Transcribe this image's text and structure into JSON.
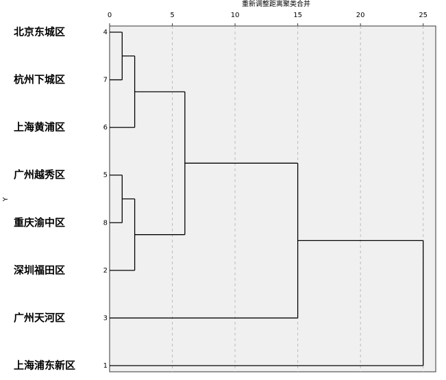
{
  "chart_data": {
    "type": "dendrogram",
    "xlabel": "重新调整距离聚类合并",
    "ylabel": "Y",
    "leaves": [
      {
        "label": "北京东城区",
        "case": 4
      },
      {
        "label": "杭州下城区",
        "case": 7
      },
      {
        "label": "上海黄浦区",
        "case": 6
      },
      {
        "label": "广州越秀区",
        "case": 5
      },
      {
        "label": "重庆渝中区",
        "case": 8
      },
      {
        "label": "深圳福田区",
        "case": 2
      },
      {
        "label": "广州天河区",
        "case": 3
      },
      {
        "label": "上海浦东新区",
        "case": 1
      }
    ],
    "merges": [
      {
        "nodes": [
          0,
          1
        ],
        "distance": 1
      },
      {
        "nodes": [
          8,
          2
        ],
        "distance": 2
      },
      {
        "nodes": [
          3,
          4
        ],
        "distance": 1
      },
      {
        "nodes": [
          10,
          5
        ],
        "distance": 2
      },
      {
        "nodes": [
          9,
          11
        ],
        "distance": 6
      },
      {
        "nodes": [
          12,
          6
        ],
        "distance": 15
      },
      {
        "nodes": [
          13,
          7
        ],
        "distance": 25
      }
    ],
    "xlim": [
      0,
      26
    ],
    "xticks": [
      0,
      5,
      10,
      15,
      20,
      25
    ],
    "grid": true,
    "line_color": "#000000"
  }
}
